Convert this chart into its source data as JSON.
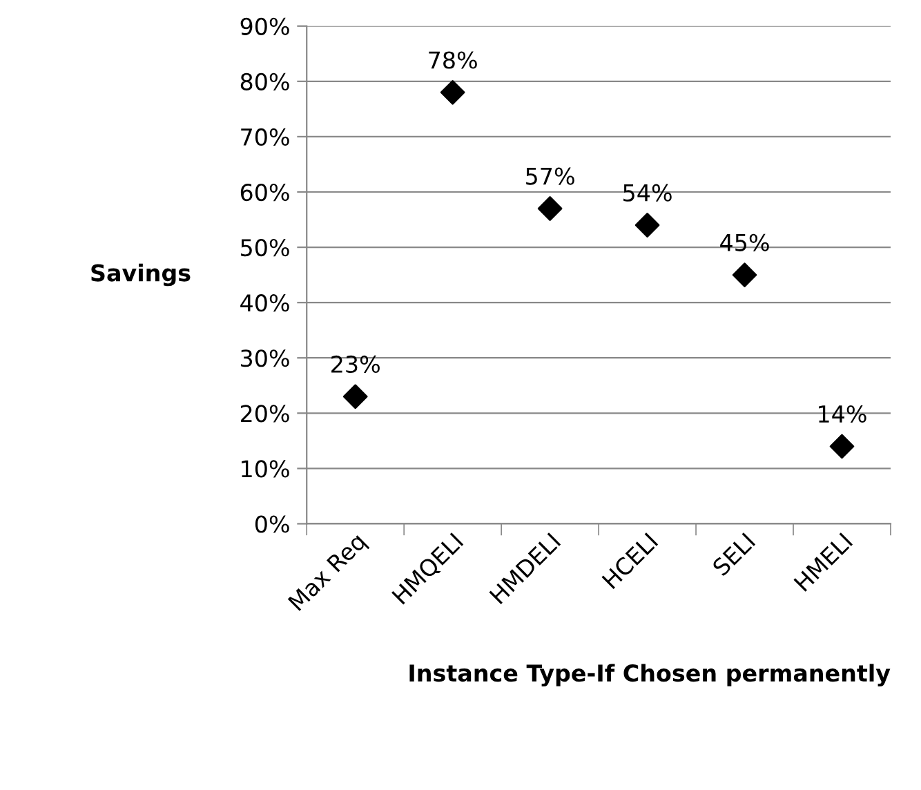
{
  "chart_data": {
    "type": "scatter",
    "xlabel": "Instance Type-If Chosen permanently",
    "ylabel": "Savings",
    "categories": [
      "Max Req",
      "HMQELI",
      "HMDELI",
      "HCELI",
      "SELI",
      "HMELI"
    ],
    "series": [
      {
        "color": "#000000",
        "values": [
          23,
          78,
          57,
          54,
          45,
          14
        ],
        "value_labels": [
          "23%",
          "78%",
          "57%",
          "54%",
          "45%",
          "14%"
        ]
      }
    ],
    "marker": "diamond",
    "ylim": [
      0,
      90
    ],
    "yticks": [
      {
        "value": 0,
        "label": "0%"
      },
      {
        "value": 10,
        "label": "10%"
      },
      {
        "value": 20,
        "label": "20%"
      },
      {
        "value": 30,
        "label": "30%"
      },
      {
        "value": 40,
        "label": "40%"
      },
      {
        "value": 50,
        "label": "50%"
      },
      {
        "value": 60,
        "label": "60%"
      },
      {
        "value": 70,
        "label": "70%"
      },
      {
        "value": 80,
        "label": "80%"
      },
      {
        "value": 90,
        "label": "90%"
      }
    ],
    "grid": "y"
  }
}
